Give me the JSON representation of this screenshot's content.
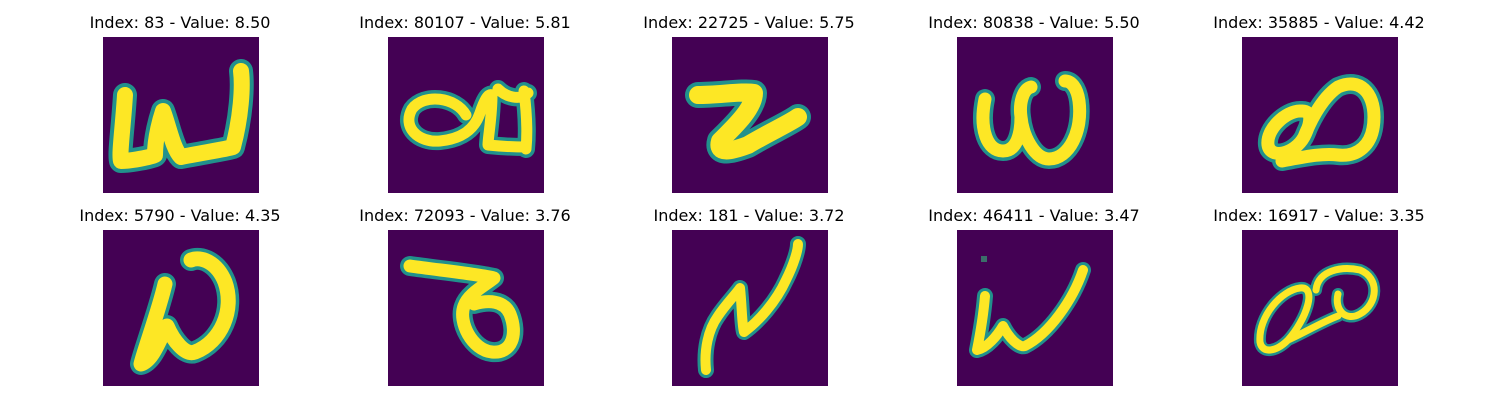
{
  "colors": {
    "background": "#440154",
    "stroke": "#fde725",
    "edge": "#35b779",
    "edge_dark": "#21918c"
  },
  "panels": [
    {
      "title": "Index: 83 - Value: 8.50",
      "glyph": "w"
    },
    {
      "title": "Index: 80107 - Value: 5.81",
      "glyph": "a-bar"
    },
    {
      "title": "Index: 22725 - Value: 5.75",
      "glyph": "z-loop"
    },
    {
      "title": "Index: 80838 - Value: 5.50",
      "glyph": "w-rounded"
    },
    {
      "title": "Index: 35885 - Value: 4.42",
      "glyph": "a-loop"
    },
    {
      "title": "Index: 5790 - Value: 4.35",
      "glyph": "omega"
    },
    {
      "title": "Index: 72093 - Value: 3.76",
      "glyph": "seven-loop"
    },
    {
      "title": "Index: 181 - Value: 3.72",
      "glyph": "n-wave"
    },
    {
      "title": "Index: 46411 - Value: 3.47",
      "glyph": "w-thin"
    },
    {
      "title": "Index: 16917 - Value: 3.35",
      "glyph": "double-loop"
    }
  ]
}
